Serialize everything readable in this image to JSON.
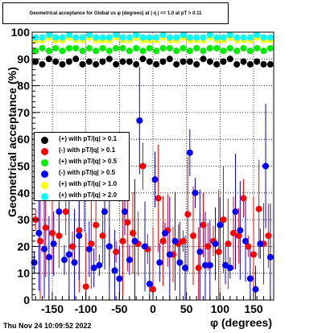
{
  "title": "Geometrical acceptance for Global vs φ (degrees) at | η | <= 1.0 at pT > 0.11",
  "timestamp": "Thu Nov 24 10:09:52 2022",
  "chart_data": {
    "type": "scatter",
    "title": "Geometrical acceptance for Global vs φ (degrees) at | η | <= 1.0 at pT > 0.11",
    "xlabel": "φ (degrees)",
    "ylabel": "Geometrical acceptance (%)",
    "xlim": [
      -180,
      180
    ],
    "ylim": [
      0,
      100
    ],
    "xticks": [
      -150,
      -100,
      -50,
      0,
      50,
      100,
      150
    ],
    "yticks": [
      0,
      10,
      20,
      30,
      40,
      50,
      60,
      70,
      80,
      90,
      100
    ],
    "grid": true,
    "legend_position": "left-middle",
    "series": [
      {
        "name": "(+) with pT/|q| > 0.1",
        "color": "#000000",
        "x": [
          -175,
          -165,
          -155,
          -145,
          -135,
          -125,
          -115,
          -105,
          -95,
          -85,
          -75,
          -65,
          -55,
          -45,
          -35,
          -25,
          -15,
          -5,
          5,
          15,
          25,
          35,
          45,
          55,
          65,
          75,
          85,
          95,
          105,
          115,
          125,
          135,
          145,
          155,
          165,
          175
        ],
        "values": [
          89,
          88,
          90,
          89,
          88,
          89,
          90,
          88,
          89,
          88,
          89,
          90,
          88,
          89,
          89,
          88,
          90,
          89,
          88,
          89,
          90,
          88,
          89,
          89,
          88,
          90,
          89,
          88,
          89,
          90,
          88,
          89,
          88,
          89,
          88,
          88
        ]
      },
      {
        "name": "(-) with pT/|q| > 0.1",
        "color": "#ff0000",
        "x": [
          -175,
          -168,
          -160,
          -150,
          -140,
          -130,
          -120,
          -110,
          -100,
          -92,
          -85,
          -75,
          -65,
          -55,
          -45,
          -38,
          -30,
          -22,
          -15,
          -8,
          0,
          8,
          15,
          22,
          30,
          38,
          45,
          52,
          60,
          68,
          75,
          82,
          90,
          98,
          105,
          112,
          120,
          128,
          135,
          142,
          150,
          158,
          165,
          172
        ],
        "values": [
          30,
          22,
          27,
          25,
          24,
          33,
          20,
          26,
          5,
          21,
          28,
          24,
          20,
          18,
          22,
          29,
          25,
          21,
          50,
          19,
          4,
          38,
          22,
          26,
          17,
          21,
          22,
          32,
          24,
          12,
          28,
          20,
          22,
          18,
          30,
          21,
          25,
          24,
          38,
          20,
          17,
          34,
          21,
          24
        ]
      },
      {
        "name": "(+) with pT/|q| > 0.5",
        "color": "#00ee00",
        "x": [
          -175,
          -165,
          -155,
          -145,
          -135,
          -125,
          -115,
          -105,
          -95,
          -85,
          -75,
          -65,
          -55,
          -45,
          -35,
          -25,
          -15,
          -5,
          5,
          15,
          25,
          35,
          45,
          55,
          65,
          75,
          85,
          95,
          105,
          115,
          125,
          135,
          145,
          155,
          165,
          175
        ],
        "values": [
          93,
          94,
          93,
          94,
          93,
          94,
          94,
          93,
          94,
          93,
          94,
          93,
          94,
          94,
          93,
          94,
          93,
          94,
          93,
          94,
          94,
          93,
          94,
          93,
          94,
          93,
          94,
          94,
          93,
          94,
          93,
          94,
          93,
          94,
          93,
          94
        ]
      },
      {
        "name": "(-) with pT/|q| > 0.5",
        "color": "#0000ff",
        "x": [
          -177,
          -170,
          -162,
          -155,
          -148,
          -140,
          -132,
          -125,
          -117,
          -110,
          -102,
          -95,
          -88,
          -80,
          -72,
          -65,
          -57,
          -50,
          -42,
          -35,
          -27,
          -20,
          -12,
          -5,
          3,
          10,
          18,
          25,
          33,
          40,
          48,
          55,
          63,
          70,
          78,
          85,
          93,
          100,
          108,
          115,
          123,
          130,
          138,
          145,
          153,
          160,
          168,
          175
        ],
        "values": [
          14,
          25,
          19,
          16,
          21,
          33,
          15,
          17,
          14,
          24,
          39,
          19,
          12,
          13,
          33,
          20,
          11,
          8,
          33,
          15,
          22,
          67,
          20,
          6,
          45,
          14,
          25,
          17,
          22,
          14,
          12,
          55,
          40,
          18,
          13,
          13,
          21,
          28,
          13,
          12,
          33,
          26,
          22,
          8,
          4,
          21,
          50,
          16
        ]
      },
      {
        "name": "(+) with pT/|q| > 1.0",
        "color": "#ffff00",
        "x": [
          -175,
          -165,
          -155,
          -145,
          -135,
          -125,
          -115,
          -105,
          -95,
          -85,
          -75,
          -65,
          -55,
          -45,
          -35,
          -25,
          -15,
          -5,
          5,
          15,
          25,
          35,
          45,
          55,
          65,
          75,
          85,
          95,
          105,
          115,
          125,
          135,
          145,
          155,
          165,
          175
        ],
        "values": [
          97,
          97,
          98,
          97,
          97,
          98,
          97,
          97,
          98,
          97,
          97,
          97,
          98,
          97,
          97,
          98,
          97,
          97,
          97,
          98,
          97,
          97,
          98,
          97,
          97,
          97,
          98,
          97,
          97,
          98,
          97,
          97,
          97,
          98,
          97,
          97
        ]
      },
      {
        "name": "(+) with pT/|q| > 2.0",
        "color": "#00ffff",
        "x": [
          -175,
          -165,
          -155,
          -145,
          -135,
          -125,
          -115,
          -105,
          -95,
          -85,
          -75,
          -65,
          -55,
          -45,
          -35,
          -25,
          -15,
          -5,
          5,
          15,
          25,
          35,
          45,
          55,
          65,
          75,
          85,
          95,
          105,
          115,
          125,
          135,
          145,
          155,
          165,
          175
        ],
        "values": [
          98,
          98,
          99,
          98,
          98,
          99,
          98,
          98,
          99,
          98,
          98,
          98,
          99,
          98,
          98,
          99,
          98,
          98,
          98,
          99,
          98,
          98,
          99,
          98,
          98,
          98,
          99,
          98,
          98,
          99,
          98,
          98,
          98,
          99,
          98,
          98
        ]
      }
    ]
  }
}
